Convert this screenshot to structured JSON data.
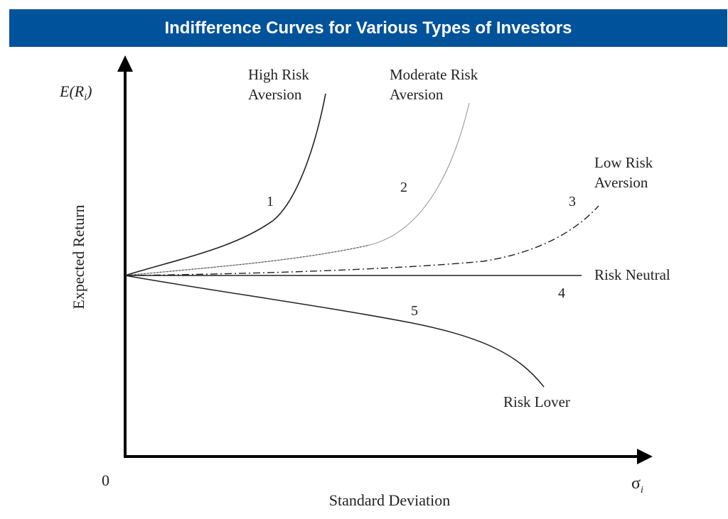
{
  "title": "Indifference Curves for Various Types of Investors",
  "colors": {
    "title_bar": "#00529b",
    "title_text": "#ffffff",
    "axis": "#000000",
    "curve_dark": "#222222",
    "curve_light": "#999999"
  },
  "chart_data": {
    "type": "line",
    "title": "Indifference Curves for Various Types of Investors",
    "y_axis_symbol": {
      "main": "E(R",
      "subscript": "i",
      "close": ")"
    },
    "x_axis_symbol": {
      "main": "σ",
      "subscript": "i"
    },
    "ylabel": "Expected Return",
    "xlabel": "Standard Deviation",
    "origin_label": "0",
    "grid": false,
    "series": [
      {
        "id": "1",
        "number": "1",
        "name_lines": [
          "High Risk",
          "Aversion"
        ],
        "style": "solid-dark"
      },
      {
        "id": "2",
        "number": "2",
        "name_lines": [
          "Moderate Risk",
          "Aversion"
        ],
        "style": "solid-light"
      },
      {
        "id": "3",
        "number": "3",
        "name_lines": [
          "Low Risk",
          "Aversion"
        ],
        "style": "dash-dot"
      },
      {
        "id": "4",
        "number": "4",
        "name_lines": [
          "Risk Neutral"
        ],
        "style": "solid-dark"
      },
      {
        "id": "5",
        "number": "5",
        "name_lines": [
          "Risk Lover"
        ],
        "style": "solid-dark"
      }
    ]
  }
}
